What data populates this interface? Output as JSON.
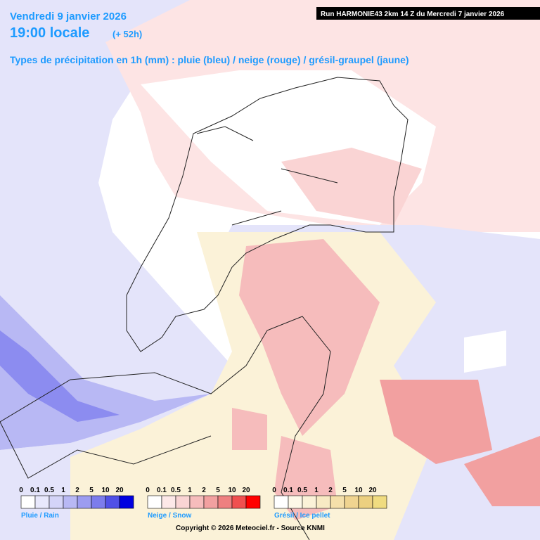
{
  "header": {
    "date": "Vendredi 9 janvier 2026",
    "time": "19:00 locale",
    "lead": "(+ 52h)",
    "subtitle": "Types de précipitation en 1h (mm) : pluie (bleu) / neige (rouge) / grésil-graupel (jaune)",
    "run": "Run HARMONIE43 2km 14 Z du Mercredi 7 janvier 2026"
  },
  "legends": [
    {
      "label": "Pluie / Rain",
      "ticks": [
        "0",
        "0.1",
        "0.5",
        "1",
        "2",
        "5",
        "10",
        "20"
      ],
      "colors": [
        "#ffffff",
        "#e8e8fc",
        "#d4d4f8",
        "#b8b8f4",
        "#9c9cf0",
        "#7c7cec",
        "#5050e6",
        "#0000e0"
      ]
    },
    {
      "label": "Neige / Snow",
      "ticks": [
        "0",
        "0.1",
        "0.5",
        "1",
        "2",
        "5",
        "10",
        "20"
      ],
      "colors": [
        "#ffffff",
        "#fde8e8",
        "#fad4d4",
        "#f6bcbc",
        "#f2a0a0",
        "#ee8080",
        "#f05050",
        "#ff0000"
      ]
    },
    {
      "label": "Grésil / Ice pellet",
      "ticks": [
        "0",
        "0.1",
        "0.5",
        "1",
        "2",
        "5",
        "10",
        "20"
      ],
      "colors": [
        "#ffffff",
        "#fdf8e8",
        "#fbf2d8",
        "#f8eac4",
        "#f5e0aa",
        "#f0d490",
        "#ecd080",
        "#f0dc80"
      ]
    }
  ],
  "footer": {
    "copyright": "Copyright © 2026 Meteociel.fr - Source KNMI"
  }
}
